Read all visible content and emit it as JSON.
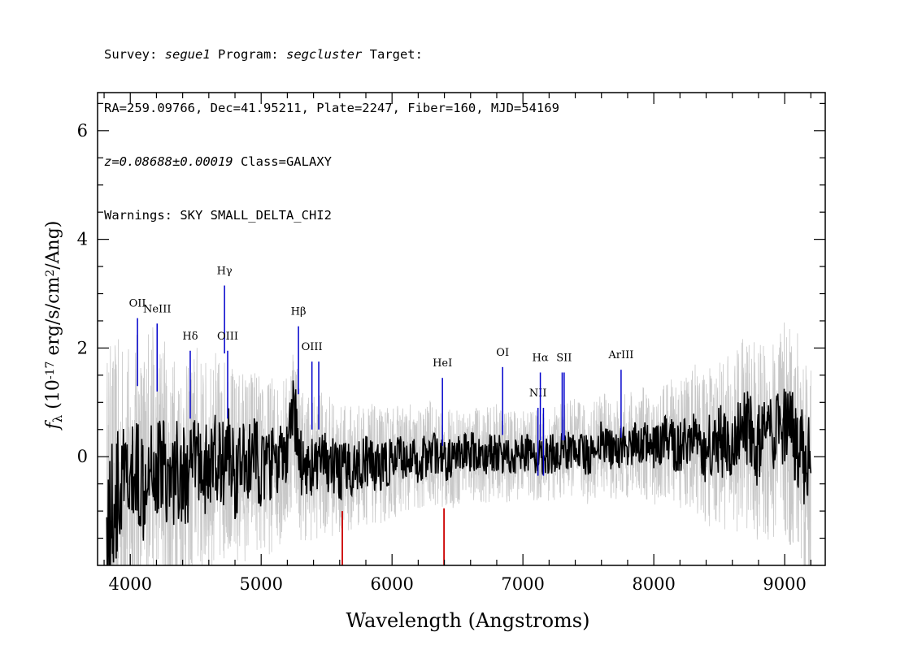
{
  "header": {
    "survey_label": "Survey: ",
    "survey": "segue1",
    "program_label": " Program: ",
    "program": "segcluster",
    "target_label": " Target:",
    "line2": "RA=259.09766, Dec=41.95211, Plate=2247, Fiber=160, MJD=54169",
    "redshift": "z=0.08688±0.00019",
    "class_text": " Class=GALAXY",
    "warnings": "Warnings: SKY SMALL_DELTA_CHI2"
  },
  "chart_data": {
    "type": "line",
    "xlabel": "Wavelength (Angstroms)",
    "ylabel": "f_λ (10^-17 erg/s/cm^2/Ang)",
    "xlim": [
      3750,
      9310
    ],
    "ylim": [
      -2.0,
      6.7
    ],
    "xticks": [
      4000,
      5000,
      6000,
      7000,
      8000,
      9000
    ],
    "yticks": [
      0,
      2,
      4,
      6
    ],
    "x_minor_step": 200,
    "y_minor_step": 0.5,
    "colors": {
      "flux": "#000000",
      "error": "#c8c8c8",
      "lines": "#0000cc",
      "sky": "#cc0000"
    },
    "series": [
      {
        "name": "flux",
        "x": [
          3820,
          3850,
          3900,
          3950,
          4000,
          4050,
          4100,
          4150,
          4200,
          4250,
          4300,
          4350,
          4400,
          4450,
          4500,
          4550,
          4600,
          4650,
          4700,
          4750,
          4800,
          4850,
          4900,
          4950,
          5000,
          5100,
          5200,
          5250,
          5300,
          5400,
          5500,
          5600,
          5700,
          5800,
          5900,
          6000,
          6100,
          6200,
          6300,
          6350,
          6400,
          6500,
          6600,
          6700,
          6800,
          6900,
          7000,
          7100,
          7200,
          7300,
          7400,
          7500,
          7600,
          7700,
          7800,
          7900,
          8000,
          8100,
          8200,
          8300,
          8400,
          8500,
          8600,
          8700,
          8800,
          8900,
          9000,
          9100,
          9200
        ],
        "y": [
          -1.2,
          -1.0,
          -0.8,
          -0.5,
          -0.6,
          -0.2,
          -0.5,
          0.3,
          -0.4,
          0.1,
          -0.6,
          -0.2,
          -0.3,
          -0.5,
          0.1,
          -0.2,
          -0.3,
          0.0,
          -0.2,
          0.2,
          -0.4,
          -0.1,
          -0.2,
          0.1,
          -0.3,
          -0.1,
          0.0,
          0.9,
          -0.1,
          -0.2,
          -0.1,
          -0.3,
          -0.2,
          -0.1,
          -0.2,
          -0.1,
          0.0,
          -0.1,
          0.1,
          0.0,
          -0.1,
          0.0,
          0.1,
          0.0,
          0.1,
          0.0,
          0.1,
          0.0,
          0.05,
          0.1,
          0.2,
          0.0,
          0.3,
          0.1,
          0.2,
          0.3,
          0.1,
          0.3,
          0.2,
          0.4,
          0.1,
          0.3,
          0.2,
          0.5,
          0.2,
          0.3,
          0.4,
          0.2,
          -0.3
        ]
      },
      {
        "name": "error",
        "x": [
          3820,
          4000,
          4500,
          5000,
          5500,
          6000,
          6500,
          7000,
          7500,
          8000,
          8500,
          9000,
          9200
        ],
        "y": [
          2.5,
          2.0,
          1.6,
          1.3,
          1.0,
          0.8,
          0.7,
          0.65,
          0.7,
          0.8,
          1.2,
          1.6,
          1.8
        ]
      }
    ],
    "emission_lines": [
      {
        "label": "OII",
        "x": 4055,
        "y0": 1.3,
        "y1": 2.55
      },
      {
        "label": "NeIII",
        "x": 4205,
        "y0": 1.2,
        "y1": 2.45
      },
      {
        "label": "Hδ",
        "x": 4458,
        "y0": 0.7,
        "y1": 1.95
      },
      {
        "label": "Hγ",
        "x": 4720,
        "y0": 1.9,
        "y1": 3.15
      },
      {
        "label": "OIII",
        "x": 4744,
        "y0": 0.7,
        "y1": 1.95
      },
      {
        "label": "Hβ",
        "x": 5285,
        "y0": 1.15,
        "y1": 2.4
      },
      {
        "label": "OIII",
        "x": 5388,
        "y0": 0.5,
        "y1": 1.75
      },
      {
        "label": "OIII",
        "x": 5440,
        "y0": 0.5,
        "y1": 1.75
      },
      {
        "label": "HeI",
        "x": 6385,
        "y0": 0.2,
        "y1": 1.45
      },
      {
        "label": "OI",
        "x": 6845,
        "y0": 0.4,
        "y1": 1.65
      },
      {
        "label": "NII",
        "x": 7115,
        "y0": -0.35,
        "y1": 0.9
      },
      {
        "label": "Hα",
        "x": 7133,
        "y0": 0.3,
        "y1": 1.55
      },
      {
        "label": "NII",
        "x": 7157,
        "y0": -0.35,
        "y1": 0.9
      },
      {
        "label": "SII",
        "x": 7300,
        "y0": 0.3,
        "y1": 1.55
      },
      {
        "label": "SII",
        "x": 7315,
        "y0": 0.3,
        "y1": 1.55
      },
      {
        "label": "ArIII",
        "x": 7750,
        "y0": 0.35,
        "y1": 1.6
      }
    ],
    "sky_lines": [
      {
        "x": 5620,
        "y0": -2.0,
        "y1": -1.0
      },
      {
        "x": 6397,
        "y0": -2.0,
        "y1": -0.95
      }
    ]
  }
}
